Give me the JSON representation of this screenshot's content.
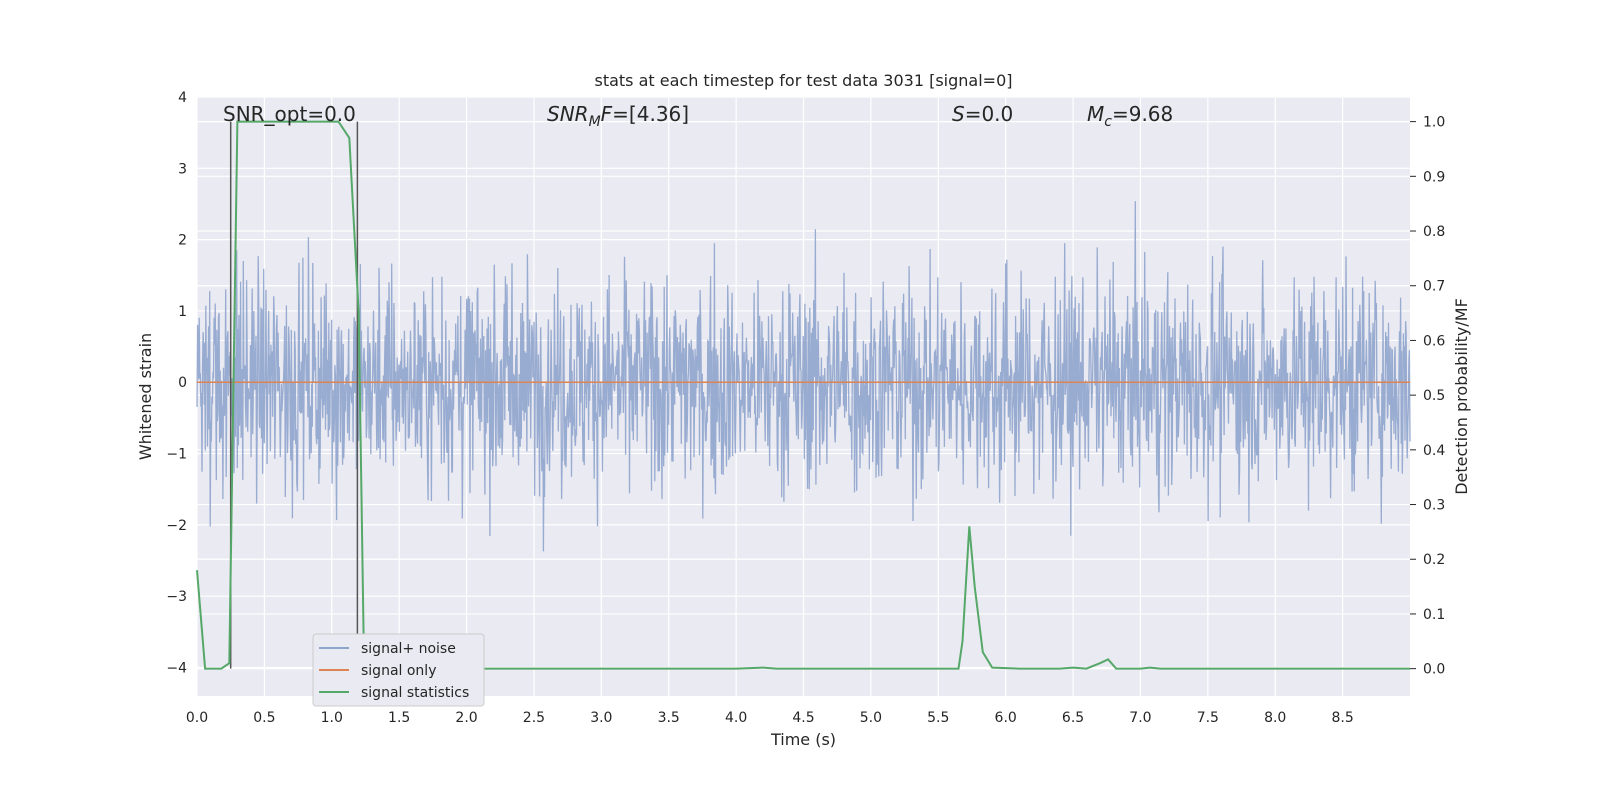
{
  "chart_data": {
    "type": "line",
    "title": "stats at each timestep for test data 3031 [signal=0]",
    "xlabel": "Time (s)",
    "ylabel": "Whitened strain",
    "y2label": "Detection probability/MF",
    "xlim": [
      0.0,
      9.0
    ],
    "ylim": [
      -4.4,
      4.0
    ],
    "y2lim": [
      -0.05,
      1.045
    ],
    "xticks": [
      "0.0",
      "0.5",
      "1.0",
      "1.5",
      "2.0",
      "2.5",
      "3.0",
      "3.5",
      "4.0",
      "4.5",
      "5.0",
      "5.5",
      "6.0",
      "6.5",
      "7.0",
      "7.5",
      "8.0",
      "8.5"
    ],
    "yticks": [
      "4",
      "3",
      "2",
      "1",
      "0",
      "−1",
      "−2",
      "−3",
      "−4"
    ],
    "y2ticks": [
      "1.0",
      "0.9",
      "0.8",
      "0.7",
      "0.6",
      "0.5",
      "0.4",
      "0.3",
      "0.2",
      "0.1",
      "0.0"
    ],
    "grid": true,
    "legend_placement": "lower-left",
    "annotations": {
      "snr_opt": "SNR_opt=0.0",
      "snr_mf_prefix": "SNR",
      "snr_mf_sub": "M",
      "snr_mf_suffix": "F=[4.36]",
      "s_label": "S",
      "s_value": "=0.0",
      "mc_label": "M",
      "mc_sub": "c",
      "mc_value": "=9.68"
    },
    "series": [
      {
        "name": "signal+ noise",
        "color": "#8fa4cc",
        "description_style": "dense noisy strain, roughly within ±2 with excursions to ±3.5"
      },
      {
        "name": "signal only",
        "color": "#dd8452",
        "x": [
          0.0,
          9.0
        ],
        "y": [
          0.0,
          0.0
        ]
      },
      {
        "name": "signal statistics",
        "color": "#55a868",
        "axis": "right",
        "x": [
          0.0,
          0.06,
          0.18,
          0.24,
          0.3,
          0.35,
          1.05,
          1.13,
          1.2,
          1.24,
          1.3,
          2.0,
          4.0,
          4.2,
          4.3,
          5.0,
          5.65,
          5.68,
          5.73,
          5.77,
          5.83,
          5.9,
          6.1,
          6.4,
          6.5,
          6.6,
          6.7,
          6.76,
          6.82,
          7.0,
          7.07,
          7.15,
          8.0,
          9.0
        ],
        "y": [
          0.18,
          0.0,
          0.0,
          0.01,
          1.0,
          1.0,
          1.0,
          0.97,
          0.65,
          0.0,
          0.0,
          0.0,
          0.0,
          0.002,
          0.0,
          0.0,
          0.0,
          0.05,
          0.26,
          0.15,
          0.03,
          0.002,
          0.0,
          0.0,
          0.002,
          0.0,
          0.01,
          0.017,
          0.0,
          0.0,
          0.002,
          0.0,
          0.0,
          0.0
        ]
      }
    ],
    "markers": {
      "color": "#555555",
      "x": [
        0.25,
        1.19
      ]
    },
    "legend": [
      "signal+ noise",
      "signal only",
      "signal statistics"
    ]
  }
}
